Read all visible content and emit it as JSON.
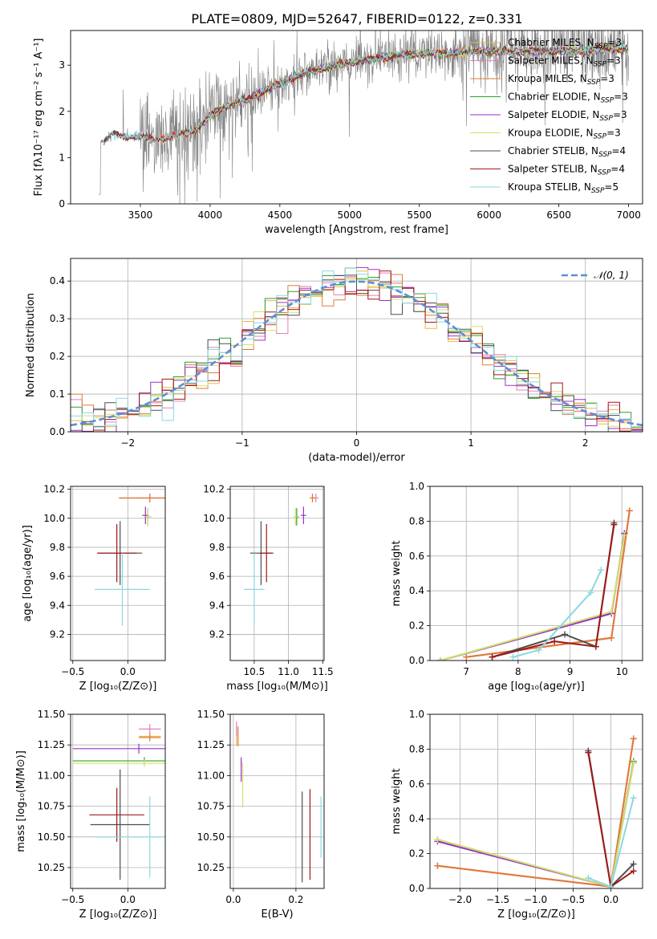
{
  "figure_title": "PLATE=0809, MJD=52647, FIBERID=0122, z=0.331",
  "colors": {
    "chabrier_miles": "#e6b84c",
    "salpeter_miles": "#e87fb8",
    "kroupa_miles": "#e07b39",
    "chabrier_elodie": "#2ca02c",
    "salpeter_elodie": "#9b30c8",
    "kroupa_elodie": "#d4e06a",
    "chabrier_stelib": "#4d4d4d",
    "salpeter_stelib": "#a01818",
    "kroupa_stelib": "#8bd8e0",
    "data": "#808080",
    "gaussian": "#5b8fd6"
  },
  "legend": [
    {
      "key": "chabrier_miles",
      "name": "Chabrier MILES, ",
      "sub": "SSP",
      "eq": "=3"
    },
    {
      "key": "salpeter_miles",
      "name": "Salpeter MILES, ",
      "sub": "SSP",
      "eq": "=3"
    },
    {
      "key": "kroupa_miles",
      "name": "Kroupa MILES, ",
      "sub": "SSP",
      "eq": "=3"
    },
    {
      "key": "chabrier_elodie",
      "name": "Chabrier ELODIE, ",
      "sub": "SSP",
      "eq": "=3"
    },
    {
      "key": "salpeter_elodie",
      "name": "Salpeter ELODIE, ",
      "sub": "SSP",
      "eq": "=3"
    },
    {
      "key": "kroupa_elodie",
      "name": "Kroupa ELODIE, ",
      "sub": "SSP",
      "eq": "=3"
    },
    {
      "key": "chabrier_stelib",
      "name": "Chabrier STELIB, ",
      "sub": "SSP",
      "eq": "=4"
    },
    {
      "key": "salpeter_stelib",
      "name": "Salpeter STELIB, ",
      "sub": "SSP",
      "eq": "=4"
    },
    {
      "key": "kroupa_stelib",
      "name": "Kroupa STELIB, ",
      "sub": "SSP",
      "eq": "=5"
    }
  ],
  "chart_data": [
    {
      "id": "spectrum",
      "type": "line",
      "title": "PLATE=0809, MJD=52647, FIBERID=0122, z=0.331",
      "xlabel": "wavelength [Angstrom, rest frame]",
      "ylabel": "Flux [fλ10⁻¹⁷ erg cm⁻² s⁻¹ A⁻¹]",
      "xlim": [
        3000,
        7100
      ],
      "ylim": [
        0,
        3.75
      ],
      "xticks": [
        3500,
        4000,
        4500,
        5000,
        5500,
        6000,
        6500,
        7000
      ],
      "yticks": [
        0,
        1,
        2,
        3
      ],
      "continuum": [
        [
          3200,
          1.3
        ],
        [
          3300,
          1.5
        ],
        [
          3450,
          1.45
        ],
        [
          3600,
          1.4
        ],
        [
          3750,
          1.45
        ],
        [
          3900,
          1.6
        ],
        [
          4000,
          1.9
        ],
        [
          4100,
          2.1
        ],
        [
          4300,
          2.3
        ],
        [
          4500,
          2.6
        ],
        [
          4700,
          2.85
        ],
        [
          4900,
          3.0
        ],
        [
          5100,
          3.1
        ],
        [
          5300,
          3.2
        ],
        [
          5500,
          3.25
        ],
        [
          5700,
          3.25
        ],
        [
          5900,
          3.3
        ],
        [
          6100,
          3.3
        ],
        [
          6300,
          3.3
        ],
        [
          6500,
          3.3
        ],
        [
          6700,
          3.3
        ],
        [
          6900,
          3.35
        ],
        [
          7000,
          3.35
        ]
      ],
      "legend_position": "right"
    },
    {
      "id": "residuals",
      "type": "histogram",
      "xlabel": "(data-model)/error",
      "ylabel": "Normed distribution",
      "xlim": [
        -2.5,
        2.5
      ],
      "ylim": [
        0,
        0.46
      ],
      "xticks": [
        -2,
        -1,
        0,
        1,
        2
      ],
      "yticks": [
        0.0,
        0.1,
        0.2,
        0.3,
        0.4
      ],
      "bin_width": 0.1,
      "gaussian_label": "𝒩(0, 1)",
      "legend_position": "top-right"
    },
    {
      "id": "age_vs_Z",
      "type": "scatter",
      "xlabel": "Z [log₁₀(Z/Z⊙)]",
      "ylabel": "age  [log₁₀(age/yr)]",
      "xlim": [
        -0.52,
        0.34
      ],
      "ylim": [
        9.02,
        10.22
      ],
      "xticks": [
        -0.5,
        0.0
      ],
      "xticklabels": [
        "−0.5",
        "0.0"
      ],
      "yticks": [
        9.2,
        9.4,
        9.6,
        9.8,
        10.0,
        10.2
      ],
      "points": [
        {
          "key": "chabrier_miles",
          "x": 0.2,
          "xerr": 0.28,
          "y": 10.14,
          "yerr": 0.03
        },
        {
          "key": "salpeter_miles",
          "x": 0.2,
          "xerr": 0.28,
          "y": 10.14,
          "yerr": 0.03
        },
        {
          "key": "kroupa_miles",
          "x": 0.2,
          "xerr": 0.28,
          "y": 10.14,
          "yerr": 0.03
        },
        {
          "key": "chabrier_elodie",
          "x": 0.18,
          "xerr": 0.03,
          "y": 10.01,
          "yerr": 0.06
        },
        {
          "key": "salpeter_elodie",
          "x": 0.16,
          "xerr": 0.03,
          "y": 10.02,
          "yerr": 0.06
        },
        {
          "key": "kroupa_elodie",
          "x": 0.18,
          "xerr": 0.03,
          "y": 10.01,
          "yerr": 0.06
        },
        {
          "key": "chabrier_stelib",
          "x": -0.07,
          "xerr": 0.2,
          "y": 9.76,
          "yerr": 0.22
        },
        {
          "key": "salpeter_stelib",
          "x": -0.1,
          "xerr": 0.18,
          "y": 9.76,
          "yerr": 0.2
        },
        {
          "key": "kroupa_stelib",
          "x": -0.05,
          "xerr": 0.25,
          "y": 9.51,
          "yerr": 0.25
        }
      ]
    },
    {
      "id": "age_vs_mass",
      "type": "scatter",
      "xlabel": "mass [log₁₀(M/M⊙)]",
      "ylabel": "",
      "xlim": [
        10.15,
        11.52
      ],
      "ylim": [
        9.02,
        10.22
      ],
      "xticks": [
        10.5,
        11.0,
        11.5
      ],
      "yticks": [
        9.2,
        9.4,
        9.6,
        9.8,
        10.0,
        10.2
      ],
      "points": [
        {
          "key": "chabrier_miles",
          "x": 11.35,
          "xerr": 0.04,
          "y": 10.14,
          "yerr": 0.03
        },
        {
          "key": "salpeter_miles",
          "x": 11.4,
          "xerr": 0.04,
          "y": 10.14,
          "yerr": 0.03
        },
        {
          "key": "kroupa_miles",
          "x": 11.35,
          "xerr": 0.04,
          "y": 10.14,
          "yerr": 0.03
        },
        {
          "key": "chabrier_elodie",
          "x": 11.12,
          "xerr": 0.03,
          "y": 10.01,
          "yerr": 0.06
        },
        {
          "key": "salpeter_elodie",
          "x": 11.22,
          "xerr": 0.04,
          "y": 10.02,
          "yerr": 0.06
        },
        {
          "key": "kroupa_elodie",
          "x": 11.1,
          "xerr": 0.03,
          "y": 10.01,
          "yerr": 0.06
        },
        {
          "key": "chabrier_stelib",
          "x": 10.6,
          "xerr": 0.16,
          "y": 9.76,
          "yerr": 0.22
        },
        {
          "key": "salpeter_stelib",
          "x": 10.68,
          "xerr": 0.1,
          "y": 9.76,
          "yerr": 0.2
        },
        {
          "key": "kroupa_stelib",
          "x": 10.5,
          "xerr": 0.15,
          "y": 9.51,
          "yerr": 0.25
        }
      ]
    },
    {
      "id": "mass_weight_vs_age",
      "type": "line",
      "xlabel": "age  [log₁₀(age/yr)]",
      "ylabel": "mass weight",
      "xlim": [
        6.3,
        10.4
      ],
      "ylim": [
        0,
        1
      ],
      "xticks": [
        7,
        8,
        9,
        10
      ],
      "yticks": [
        0.0,
        0.2,
        0.4,
        0.6,
        0.8,
        1.0
      ],
      "series": [
        {
          "key": "chabrier_miles",
          "x": [
            7.0,
            9.8,
            10.15
          ],
          "y": [
            0.02,
            0.13,
            0.86
          ]
        },
        {
          "key": "salpeter_miles",
          "x": [
            7.0,
            9.8,
            10.15
          ],
          "y": [
            0.02,
            0.13,
            0.86
          ]
        },
        {
          "key": "kroupa_miles",
          "x": [
            7.0,
            9.8,
            10.15
          ],
          "y": [
            0.02,
            0.13,
            0.86
          ]
        },
        {
          "key": "chabrier_elodie",
          "x": [
            6.5,
            9.8,
            10.05
          ],
          "y": [
            0.0,
            0.27,
            0.73
          ]
        },
        {
          "key": "salpeter_elodie",
          "x": [
            6.5,
            9.8,
            10.05
          ],
          "y": [
            0.0,
            0.27,
            0.73
          ]
        },
        {
          "key": "kroupa_elodie",
          "x": [
            6.5,
            9.8,
            10.05
          ],
          "y": [
            0.0,
            0.28,
            0.72
          ]
        },
        {
          "key": "chabrier_stelib",
          "x": [
            7.5,
            8.9,
            9.5,
            9.85
          ],
          "y": [
            0.02,
            0.15,
            0.08,
            0.79
          ]
        },
        {
          "key": "salpeter_stelib",
          "x": [
            7.5,
            8.7,
            9.5,
            9.85
          ],
          "y": [
            0.02,
            0.11,
            0.08,
            0.78
          ]
        },
        {
          "key": "kroupa_stelib",
          "x": [
            7.9,
            8.4,
            9.4,
            9.6
          ],
          "y": [
            0.02,
            0.06,
            0.39,
            0.52
          ]
        }
      ]
    },
    {
      "id": "mass_vs_Z",
      "type": "scatter",
      "xlabel": "Z [log₁₀(Z/Z⊙)]",
      "ylabel": "mass [log₁₀(M/M⊙)]",
      "xlim": [
        -0.52,
        0.34
      ],
      "ylim": [
        10.08,
        11.5
      ],
      "xticks": [
        -0.5,
        0.0
      ],
      "xticklabels": [
        "−0.5",
        "0.0"
      ],
      "yticks": [
        10.25,
        10.5,
        10.75,
        11.0,
        11.25,
        11.5
      ],
      "points": [
        {
          "key": "chabrier_miles",
          "x": 0.2,
          "xerr": 0.1,
          "y": 11.32,
          "yerr": 0.03
        },
        {
          "key": "salpeter_miles",
          "x": 0.2,
          "xerr": 0.1,
          "y": 11.38,
          "yerr": 0.04
        },
        {
          "key": "kroupa_miles",
          "x": 0.2,
          "xerr": 0.1,
          "y": 11.31,
          "yerr": 0.03
        },
        {
          "key": "chabrier_elodie",
          "x": 0.15,
          "xerr": 0.65,
          "y": 11.12,
          "yerr": 0.03
        },
        {
          "key": "salpeter_elodie",
          "x": 0.1,
          "xerr": 0.6,
          "y": 11.22,
          "yerr": 0.04
        },
        {
          "key": "kroupa_elodie",
          "x": 0.15,
          "xerr": 0.65,
          "y": 11.1,
          "yerr": 0.03
        },
        {
          "key": "chabrier_stelib",
          "x": -0.07,
          "xerr": 0.27,
          "y": 10.6,
          "yerr": 0.45
        },
        {
          "key": "salpeter_stelib",
          "x": -0.1,
          "xerr": 0.25,
          "y": 10.68,
          "yerr": 0.22
        },
        {
          "key": "kroupa_stelib",
          "x": 0.2,
          "xerr": 0.5,
          "y": 10.5,
          "yerr": 0.33
        }
      ]
    },
    {
      "id": "mass_vs_ebv",
      "type": "scatter",
      "xlabel": "E(B-V)",
      "ylabel": "",
      "xlim": [
        -0.01,
        0.29
      ],
      "ylim": [
        10.08,
        11.5
      ],
      "xticks": [
        0.0,
        0.2
      ],
      "yticks": [
        10.25,
        10.5,
        10.75,
        11.0,
        11.25,
        11.5
      ],
      "points": [
        {
          "key": "chabrier_miles",
          "x": 0.01,
          "xerr": 0.0,
          "y": 11.32,
          "yerr": 0.08
        },
        {
          "key": "salpeter_miles",
          "x": 0.01,
          "xerr": 0.0,
          "y": 11.38,
          "yerr": 0.06
        },
        {
          "key": "kroupa_miles",
          "x": 0.015,
          "xerr": 0.0,
          "y": 11.32,
          "yerr": 0.08
        },
        {
          "key": "chabrier_elodie",
          "x": 0.025,
          "xerr": 0.0,
          "y": 11.1,
          "yerr": 0.02
        },
        {
          "key": "salpeter_elodie",
          "x": 0.025,
          "xerr": 0.0,
          "y": 11.05,
          "yerr": 0.1
        },
        {
          "key": "kroupa_elodie",
          "x": 0.03,
          "xerr": 0.0,
          "y": 10.92,
          "yerr": 0.18
        },
        {
          "key": "chabrier_stelib",
          "x": 0.22,
          "xerr": 0.0,
          "y": 10.5,
          "yerr": 0.37
        },
        {
          "key": "salpeter_stelib",
          "x": 0.245,
          "xerr": 0.0,
          "y": 10.52,
          "yerr": 0.37
        },
        {
          "key": "kroupa_stelib",
          "x": 0.28,
          "xerr": 0.0,
          "y": 10.58,
          "yerr": 0.25
        }
      ]
    },
    {
      "id": "mass_weight_vs_Z",
      "type": "line",
      "xlabel": "Z [log₁₀(Z/Z⊙)]",
      "ylabel": "mass weight",
      "xlim": [
        -2.4,
        0.42
      ],
      "ylim": [
        0,
        1
      ],
      "xticks": [
        -2.0,
        -1.5,
        -1.0,
        -0.5,
        0.0
      ],
      "xticklabels": [
        "−2.0",
        "−1.5",
        "−1.0",
        "−0.5",
        "0.0"
      ],
      "yticks": [
        0.0,
        0.2,
        0.4,
        0.6,
        0.8,
        1.0
      ],
      "series": [
        {
          "key": "chabrier_miles",
          "x": [
            -2.3,
            0.0,
            0.3
          ],
          "y": [
            0.13,
            0.01,
            0.86
          ]
        },
        {
          "key": "salpeter_miles",
          "x": [
            -2.3,
            0.0,
            0.3
          ],
          "y": [
            0.13,
            0.01,
            0.86
          ]
        },
        {
          "key": "kroupa_miles",
          "x": [
            -2.3,
            0.0,
            0.3
          ],
          "y": [
            0.13,
            0.01,
            0.86
          ]
        },
        {
          "key": "chabrier_elodie",
          "x": [
            -2.3,
            0.0,
            0.3
          ],
          "y": [
            0.28,
            0.01,
            0.73
          ]
        },
        {
          "key": "salpeter_elodie",
          "x": [
            -2.3,
            0.0,
            0.3
          ],
          "y": [
            0.27,
            0.01,
            0.72
          ]
        },
        {
          "key": "kroupa_elodie",
          "x": [
            -2.3,
            0.0,
            0.3
          ],
          "y": [
            0.28,
            0.01,
            0.72
          ]
        },
        {
          "key": "chabrier_stelib",
          "x": [
            -0.3,
            0.0,
            0.3
          ],
          "y": [
            0.79,
            0.01,
            0.14
          ]
        },
        {
          "key": "salpeter_stelib",
          "x": [
            -0.3,
            0.0,
            0.3
          ],
          "y": [
            0.78,
            0.01,
            0.1
          ]
        },
        {
          "key": "kroupa_stelib",
          "x": [
            -0.3,
            0.0,
            0.3
          ],
          "y": [
            0.06,
            0.01,
            0.52
          ]
        }
      ]
    }
  ]
}
